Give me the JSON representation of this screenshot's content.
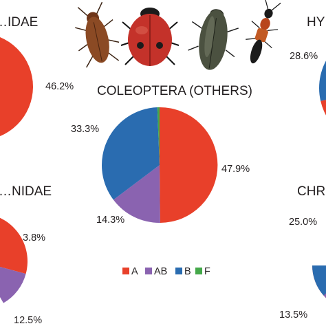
{
  "colors": {
    "A": "#e8402a",
    "AB": "#8a63b0",
    "B": "#2a6cb0",
    "F": "#44a84a"
  },
  "chart_data": [
    {
      "type": "pie",
      "title": "…IDAE",
      "slices": [
        {
          "category": "A",
          "value": 46.2,
          "label": "46.2%"
        }
      ]
    },
    {
      "type": "pie",
      "title": "COLEOPTERA (OTHERS)",
      "slices": [
        {
          "category": "A",
          "value": 47.9,
          "label": "47.9%"
        },
        {
          "category": "AB",
          "value": 14.3,
          "label": "14.3%"
        },
        {
          "category": "B",
          "value": 33.3,
          "label": "33.3%"
        },
        {
          "category": "F",
          "value": 0.6,
          "label": ""
        }
      ]
    },
    {
      "type": "pie",
      "title": "HY…",
      "slices": [
        {
          "category": "A",
          "value": null,
          "label": ""
        },
        {
          "category": "B",
          "value": 28.6,
          "label": "28.6%"
        }
      ]
    },
    {
      "type": "pie",
      "title": "…NIDAE",
      "slices": [
        {
          "category": "A",
          "value": null,
          "label": ""
        },
        {
          "category": "F",
          "value": 3.8,
          "label": "3.8%"
        },
        {
          "category": "AB",
          "value": 12.5,
          "label": "12.5%"
        }
      ]
    },
    {
      "type": "pie",
      "title": "CHR…",
      "slices": [
        {
          "category": "B",
          "value": null,
          "label": ""
        },
        {
          "category": "A",
          "value": 25.0,
          "label": "25.0%"
        },
        {
          "category": "AB",
          "value": 13.5,
          "label": "13.5%"
        }
      ]
    }
  ],
  "legend": {
    "position": "bottom-center",
    "items": [
      {
        "key": "A",
        "label": "A"
      },
      {
        "key": "AB",
        "label": "AB"
      },
      {
        "key": "B",
        "label": "B"
      },
      {
        "key": "F",
        "label": "F"
      }
    ]
  },
  "images": {
    "beetles": [
      "brown-longhorn-beetle",
      "red-ladybird-beetle",
      "dark-water-beetle",
      "red-black-rove-beetle"
    ]
  }
}
